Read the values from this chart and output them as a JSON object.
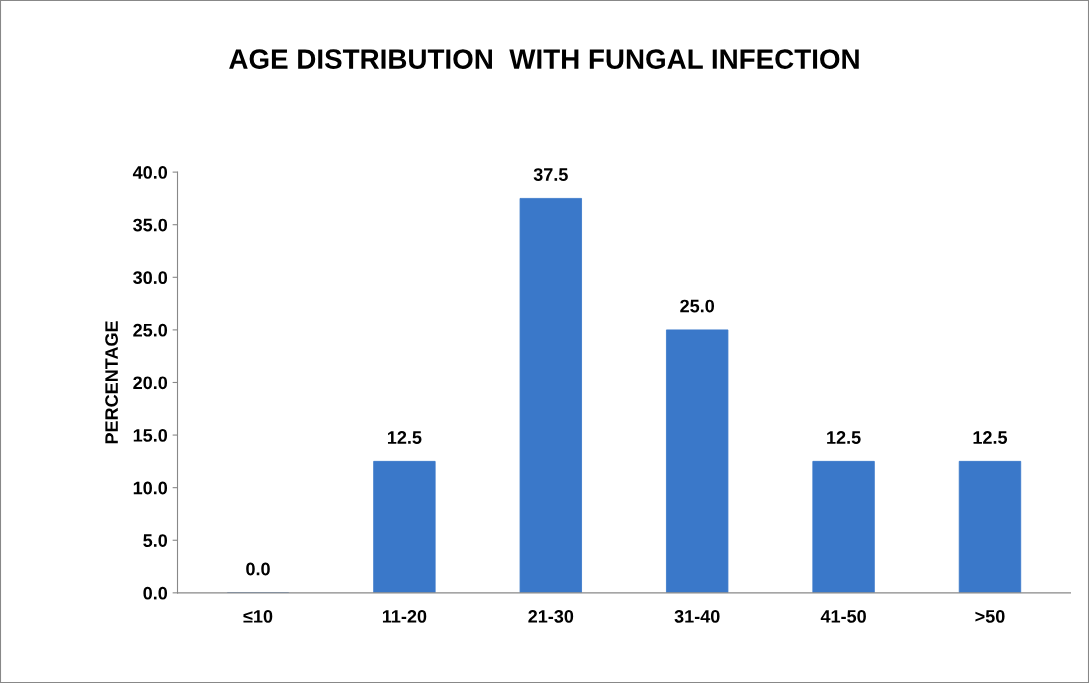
{
  "chart_data": {
    "type": "bar",
    "title": "AGE DISTRIBUTION  WITH FUNGAL INFECTION",
    "ylabel": "PERCENTAGE",
    "categories": [
      "≤10",
      "11-20",
      "21-30",
      "31-40",
      "41-50",
      ">50"
    ],
    "values": [
      0.0,
      12.5,
      37.5,
      25.0,
      12.5,
      12.5
    ],
    "value_labels": [
      "0.0",
      "12.5",
      "37.5",
      "25.0",
      "12.5",
      "12.5"
    ],
    "color": "#3a78c9",
    "ylim": [
      0,
      40
    ],
    "yticks": [
      {
        "value": 0,
        "label": "0.0"
      },
      {
        "value": 5,
        "label": "5.0"
      },
      {
        "value": 10,
        "label": "10.0"
      },
      {
        "value": 15,
        "label": "15.0"
      },
      {
        "value": 20,
        "label": "20.0"
      },
      {
        "value": 25,
        "label": "25.0"
      },
      {
        "value": 30,
        "label": "30.0"
      },
      {
        "value": 35,
        "label": "35.0"
      },
      {
        "value": 40,
        "label": "40.0"
      }
    ],
    "grid": false,
    "legend": false
  }
}
